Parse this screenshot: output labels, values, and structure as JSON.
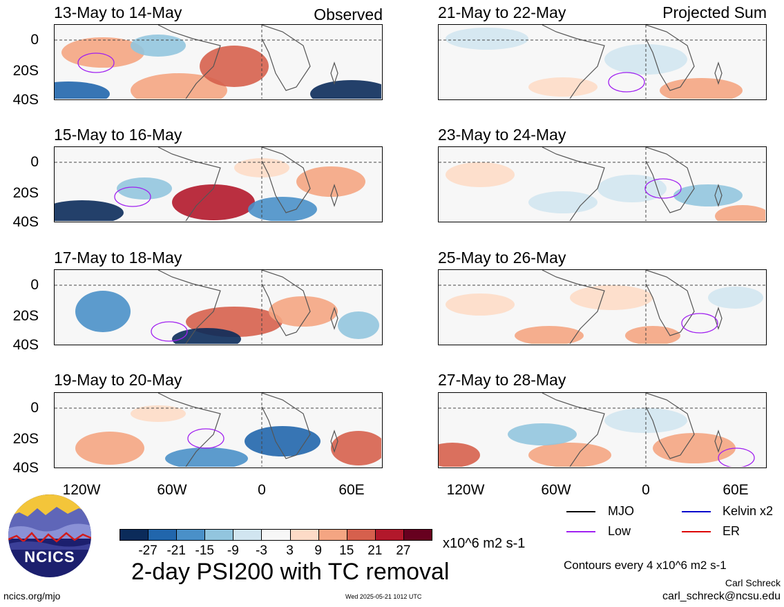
{
  "panels": [
    {
      "title": "13-May to 14-May",
      "label": "Observed"
    },
    {
      "title": "15-May to 16-May",
      "label": ""
    },
    {
      "title": "17-May to 18-May",
      "label": ""
    },
    {
      "title": "19-May to 20-May",
      "label": ""
    },
    {
      "title": "21-May to 22-May",
      "label": "Projected Sum"
    },
    {
      "title": "23-May to 24-May",
      "label": ""
    },
    {
      "title": "25-May to 26-May",
      "label": ""
    },
    {
      "title": "27-May to 28-May",
      "label": ""
    }
  ],
  "y_ticks": [
    "0",
    "20S",
    "40S"
  ],
  "x_ticks": [
    "120W",
    "60W",
    "0",
    "60E"
  ],
  "colorbar": {
    "colors": [
      "#0b2b5a",
      "#2166ac",
      "#4a90c8",
      "#92c5de",
      "#d1e5f0",
      "#f7f7f7",
      "#fddbc7",
      "#f4a582",
      "#d6604d",
      "#b2182b",
      "#67001f"
    ],
    "labels": [
      "-27",
      "-21",
      "-15",
      "-9",
      "-3",
      "3",
      "9",
      "15",
      "21",
      "27"
    ],
    "units": "x10^6 m2 s-1"
  },
  "legend": [
    {
      "label": "MJO",
      "color": "#000000"
    },
    {
      "label": "Kelvin x2",
      "color": "#0000cc"
    },
    {
      "label": "Low",
      "color": "#a020f0"
    },
    {
      "label": "ER",
      "color": "#dd0000"
    }
  ],
  "logo_text": "NCICS",
  "main_title": "2-day PSI200 with TC removal",
  "contour_note": "Contours every 4 x10^6 m2 s-1",
  "author": "Carl Schreck",
  "email": "carl_schreck@ncsu.edu",
  "site": "ncics.org/mjo",
  "timestamp": "Wed 2025-05-21 1012 UTC"
}
